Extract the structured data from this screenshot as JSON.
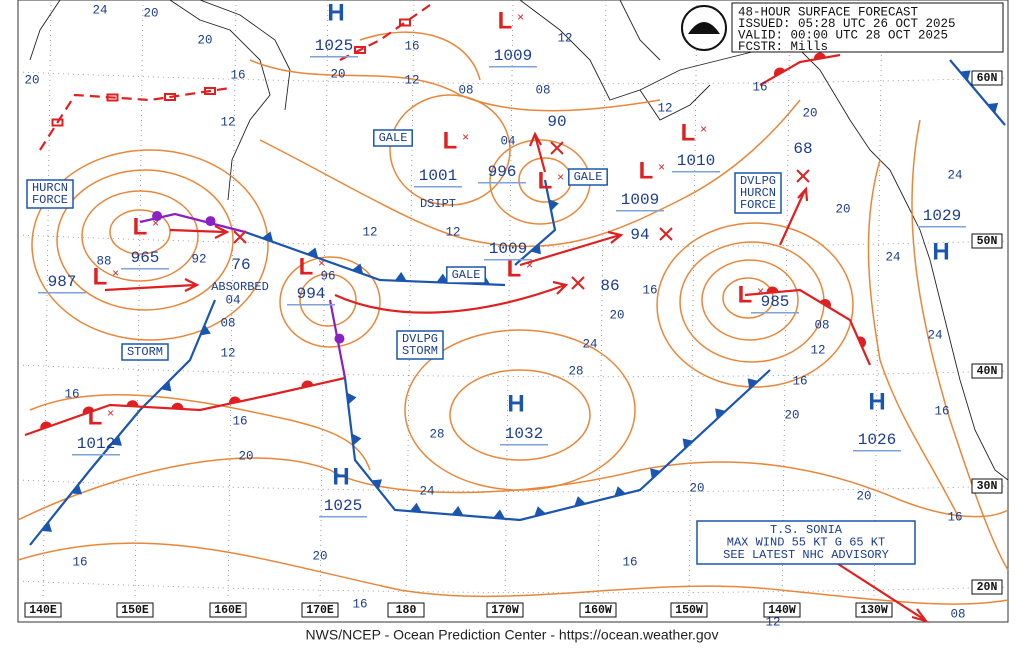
{
  "header": {
    "lines": [
      "48-HOUR SURFACE FORECAST",
      "ISSUED: 05:28 UTC 26 OCT 2025",
      "VALID:  00:00 UTC 28 OCT 2025",
      "FCSTR:  Mills"
    ]
  },
  "centers": [
    {
      "symbol": "H",
      "pressure": 1025
    },
    {
      "symbol": "L",
      "pressure": 1009
    },
    {
      "symbol": "L",
      "pressure": 1001
    },
    {
      "symbol": "L",
      "pressure": 996
    },
    {
      "symbol": "L",
      "pressure": 1010
    },
    {
      "symbol": "L",
      "pressure": 1009
    },
    {
      "symbol": "L",
      "pressure": 965
    },
    {
      "symbol": "L",
      "pressure": 987
    },
    {
      "symbol": "L",
      "pressure": 994
    },
    {
      "symbol": "L",
      "pressure": 1009
    },
    {
      "symbol": "L",
      "pressure": 985
    },
    {
      "symbol": "L",
      "pressure": 1012
    },
    {
      "symbol": "H",
      "pressure": 1032
    },
    {
      "symbol": "H",
      "pressure": 1025
    },
    {
      "symbol": "H",
      "pressure": 1026
    },
    {
      "symbol": "H",
      "pressure": 1029
    }
  ],
  "forecast_pressures": [
    "90",
    "94",
    "68",
    "76",
    "86"
  ],
  "warnings": [
    [
      "GALE"
    ],
    [
      "GALE"
    ],
    [
      "GALE"
    ],
    [
      "HURCN",
      "FORCE"
    ],
    [
      "STORM"
    ],
    [
      "DVLPG",
      "STORM"
    ],
    [
      "DVLPG",
      "HURCN",
      "FORCE"
    ]
  ],
  "notes": [
    "ABSORBED",
    "DSIPT"
  ],
  "isobar_labels": [
    "24",
    "20",
    "20",
    "16",
    "20",
    "12",
    "16",
    "20",
    "12",
    "08",
    "04",
    "12",
    "08",
    "12",
    "16",
    "20",
    "12",
    "12",
    "92",
    "88",
    "96",
    "04",
    "08",
    "12",
    "16",
    "20",
    "24",
    "28",
    "28",
    "16",
    "16",
    "20",
    "24",
    "20",
    "20",
    "20",
    "16",
    "12",
    "08",
    "20",
    "24",
    "24",
    "24",
    "16",
    "16",
    "20",
    "16",
    "16",
    "16",
    "12",
    "08"
  ],
  "longitude_labels": [
    "140E",
    "150E",
    "160E",
    "170E",
    "180",
    "170W",
    "160W",
    "150W",
    "140W",
    "130W"
  ],
  "latitude_labels": [
    "60N",
    "50N",
    "40N",
    "30N",
    "20N"
  ],
  "advisory": [
    "T.S. SONIA",
    "MAX WIND 55 KT G 65 KT",
    "SEE LATEST NHC ADVISORY"
  ],
  "footer": "NWS/NCEP - Ocean Prediction Center - https://ocean.weather.gov"
}
